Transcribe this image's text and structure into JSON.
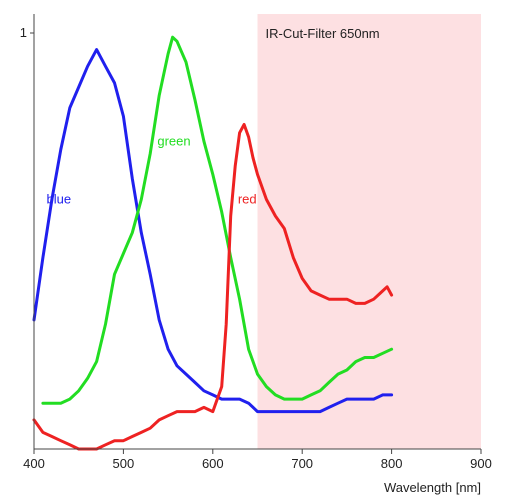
{
  "chart_data": {
    "type": "line",
    "title": "",
    "xlabel": "Wavelength [nm]",
    "ylabel": "",
    "xlim": [
      400,
      900
    ],
    "ylim": [
      0,
      1
    ],
    "x_ticks": [
      400,
      500,
      600,
      700,
      800,
      900
    ],
    "y_ticks": [
      1
    ],
    "grid": false,
    "legend": "none",
    "colors": {
      "shade": "#fde0e2",
      "axis": "#444444"
    },
    "shaded_region": {
      "from": 650,
      "to": 900,
      "label": "IR-Cut-Filter 650nm"
    },
    "series": [
      {
        "name": "blue",
        "color": "#2020ee",
        "label_pos": {
          "x": 414,
          "y": 0.59
        },
        "x": [
          400,
          410,
          420,
          430,
          440,
          450,
          460,
          470,
          480,
          490,
          500,
          510,
          520,
          530,
          540,
          550,
          560,
          570,
          580,
          590,
          600,
          610,
          620,
          630,
          640,
          650,
          660,
          670,
          680,
          690,
          700,
          710,
          720,
          730,
          740,
          750,
          760,
          770,
          780,
          790,
          800
        ],
        "y": [
          0.31,
          0.46,
          0.6,
          0.72,
          0.82,
          0.87,
          0.92,
          0.96,
          0.92,
          0.88,
          0.8,
          0.65,
          0.52,
          0.42,
          0.31,
          0.24,
          0.2,
          0.18,
          0.16,
          0.14,
          0.13,
          0.12,
          0.12,
          0.12,
          0.11,
          0.09,
          0.09,
          0.09,
          0.09,
          0.09,
          0.09,
          0.09,
          0.09,
          0.1,
          0.11,
          0.12,
          0.12,
          0.12,
          0.12,
          0.13,
          0.13
        ]
      },
      {
        "name": "green",
        "color": "#22dd22",
        "label_pos": {
          "x": 538,
          "y": 0.73
        },
        "x": [
          410,
          420,
          430,
          440,
          450,
          460,
          470,
          480,
          490,
          500,
          510,
          520,
          530,
          540,
          550,
          555,
          560,
          570,
          580,
          590,
          600,
          610,
          620,
          630,
          640,
          650,
          660,
          670,
          680,
          690,
          700,
          710,
          720,
          730,
          740,
          750,
          760,
          770,
          780,
          790,
          800
        ],
        "y": [
          0.11,
          0.11,
          0.11,
          0.12,
          0.14,
          0.17,
          0.21,
          0.3,
          0.42,
          0.47,
          0.52,
          0.6,
          0.71,
          0.85,
          0.95,
          0.99,
          0.98,
          0.93,
          0.84,
          0.74,
          0.66,
          0.57,
          0.46,
          0.36,
          0.24,
          0.18,
          0.15,
          0.13,
          0.12,
          0.12,
          0.12,
          0.13,
          0.14,
          0.16,
          0.18,
          0.19,
          0.21,
          0.22,
          0.22,
          0.23,
          0.24
        ]
      },
      {
        "name": "red",
        "color": "#ee2222",
        "label_pos": {
          "x": 628,
          "y": 0.59
        },
        "x": [
          400,
          410,
          420,
          430,
          440,
          450,
          460,
          470,
          480,
          490,
          500,
          510,
          520,
          530,
          540,
          550,
          560,
          570,
          580,
          590,
          600,
          610,
          615,
          620,
          625,
          630,
          635,
          640,
          645,
          650,
          660,
          670,
          680,
          690,
          700,
          710,
          720,
          730,
          740,
          750,
          760,
          770,
          780,
          790,
          795,
          800
        ],
        "y": [
          0.07,
          0.04,
          0.03,
          0.02,
          0.01,
          0.0,
          0.0,
          0.0,
          0.01,
          0.02,
          0.02,
          0.03,
          0.04,
          0.05,
          0.07,
          0.08,
          0.09,
          0.09,
          0.09,
          0.1,
          0.09,
          0.15,
          0.3,
          0.56,
          0.68,
          0.76,
          0.78,
          0.75,
          0.7,
          0.66,
          0.6,
          0.56,
          0.53,
          0.46,
          0.41,
          0.38,
          0.37,
          0.36,
          0.36,
          0.36,
          0.35,
          0.35,
          0.36,
          0.38,
          0.39,
          0.37
        ]
      }
    ]
  }
}
